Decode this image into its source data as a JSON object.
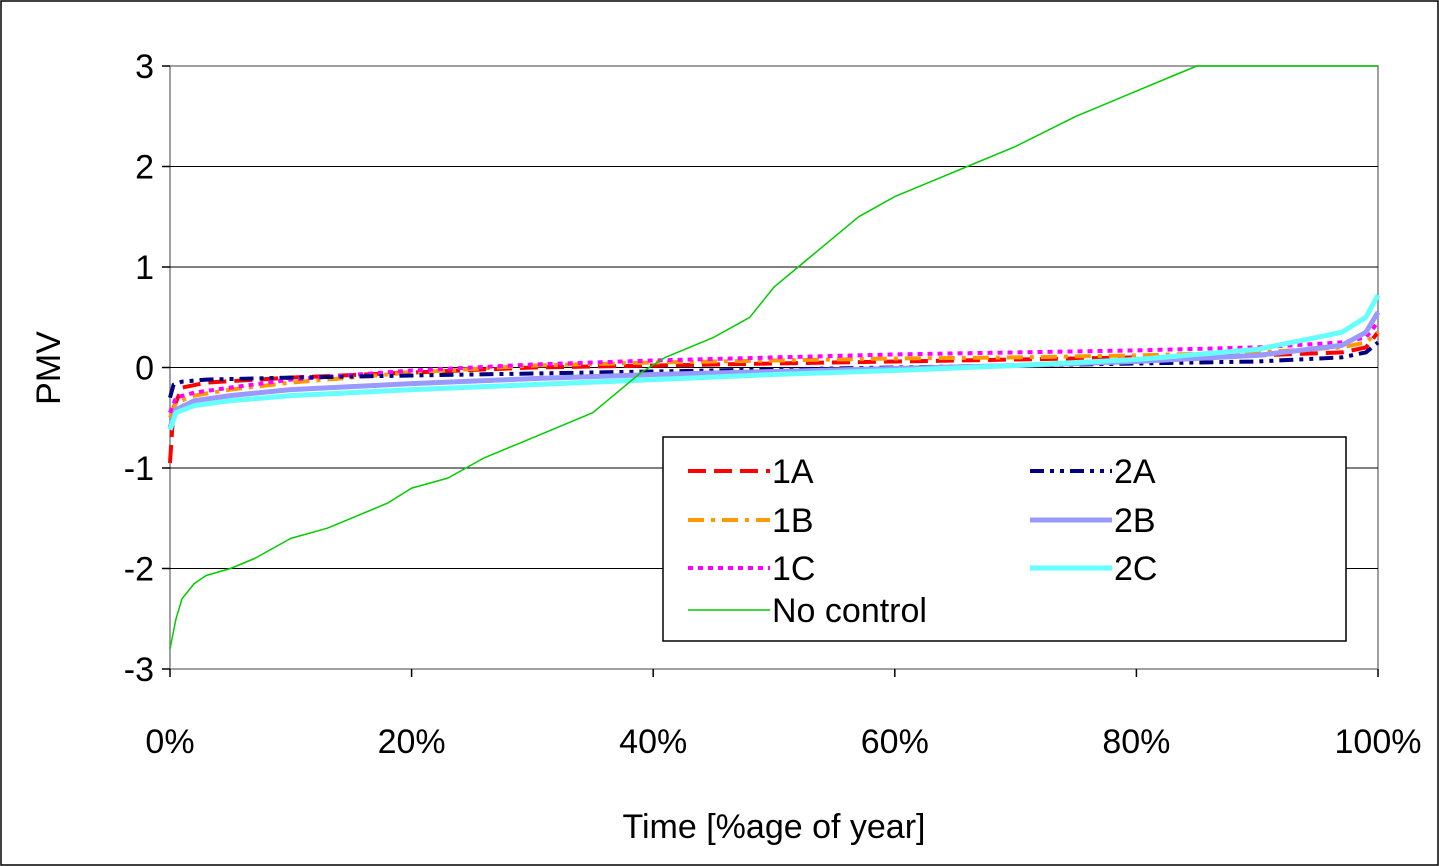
{
  "chart_data": {
    "type": "line",
    "title": "",
    "xlabel": "Time [%age of year]",
    "ylabel": "PMV",
    "xlim": [
      0,
      100
    ],
    "ylim": [
      -3,
      3
    ],
    "x_ticks": [
      0,
      20,
      40,
      60,
      80,
      100
    ],
    "x_tick_labels": [
      "0%",
      "20%",
      "40%",
      "60%",
      "80%",
      "100%"
    ],
    "y_ticks": [
      -3,
      -2,
      -1,
      0,
      1,
      2,
      3
    ],
    "y_tick_labels": [
      "-3",
      "-2",
      "-1",
      "0",
      "1",
      "2",
      "3"
    ],
    "grid": "horizontal",
    "legend_position": "bottom-right inside plot",
    "series": [
      {
        "name": "1A",
        "color": "#ff0000",
        "dash": "dash",
        "x": [
          0,
          0.3,
          1,
          3,
          10,
          20,
          30,
          40,
          50,
          60,
          70,
          80,
          90,
          97,
          99,
          100
        ],
        "y": [
          -0.95,
          -0.4,
          -0.2,
          -0.15,
          -0.1,
          -0.05,
          0.0,
          0.02,
          0.04,
          0.06,
          0.08,
          0.1,
          0.12,
          0.15,
          0.2,
          0.35
        ]
      },
      {
        "name": "1B",
        "color": "#ff9900",
        "dash": "dashdot",
        "x": [
          0,
          0.5,
          2,
          5,
          10,
          20,
          30,
          40,
          50,
          60,
          70,
          80,
          90,
          97,
          99,
          100
        ],
        "y": [
          -0.5,
          -0.35,
          -0.28,
          -0.22,
          -0.15,
          -0.05,
          0.02,
          0.05,
          0.07,
          0.09,
          0.1,
          0.12,
          0.15,
          0.2,
          0.25,
          0.35
        ]
      },
      {
        "name": "1C",
        "color": "#ff00ff",
        "dash": "dot",
        "x": [
          0,
          0.5,
          2,
          5,
          10,
          20,
          30,
          40,
          50,
          60,
          70,
          80,
          90,
          97,
          99,
          100
        ],
        "y": [
          -0.45,
          -0.3,
          -0.25,
          -0.2,
          -0.12,
          -0.03,
          0.03,
          0.07,
          0.1,
          0.13,
          0.15,
          0.17,
          0.2,
          0.25,
          0.3,
          0.45
        ]
      },
      {
        "name": "2A",
        "color": "#000080",
        "dash": "dashdotdot",
        "x": [
          0,
          0.3,
          1,
          3,
          10,
          20,
          30,
          40,
          50,
          60,
          70,
          80,
          90,
          97,
          99,
          100
        ],
        "y": [
          -0.3,
          -0.17,
          -0.14,
          -0.12,
          -0.1,
          -0.08,
          -0.06,
          -0.04,
          -0.02,
          0.0,
          0.02,
          0.04,
          0.06,
          0.1,
          0.15,
          0.25
        ]
      },
      {
        "name": "2B",
        "color": "#9999ff",
        "dash": "solid",
        "x": [
          0,
          0.5,
          2,
          5,
          10,
          20,
          30,
          40,
          50,
          60,
          70,
          80,
          90,
          97,
          99,
          100
        ],
        "y": [
          -0.6,
          -0.42,
          -0.33,
          -0.28,
          -0.22,
          -0.16,
          -0.11,
          -0.07,
          -0.04,
          -0.01,
          0.02,
          0.06,
          0.12,
          0.22,
          0.35,
          0.55
        ]
      },
      {
        "name": "2C",
        "color": "#66ffff",
        "dash": "solid",
        "x": [
          0,
          0.5,
          2,
          5,
          10,
          20,
          30,
          40,
          50,
          60,
          70,
          80,
          90,
          97,
          99,
          100
        ],
        "y": [
          -0.62,
          -0.45,
          -0.38,
          -0.33,
          -0.28,
          -0.22,
          -0.17,
          -0.12,
          -0.07,
          -0.03,
          0.02,
          0.08,
          0.18,
          0.35,
          0.5,
          0.72
        ]
      },
      {
        "name": "No control",
        "color": "#00cc00",
        "dash": "solid",
        "x": [
          0,
          0.5,
          1,
          2,
          3,
          5,
          7,
          10,
          13,
          15,
          18,
          20,
          23,
          26,
          29,
          32,
          35,
          37,
          39,
          41,
          43,
          45,
          48,
          50,
          52,
          53,
          55,
          57,
          60,
          63,
          66,
          70,
          75,
          80,
          83,
          85,
          90,
          95,
          100
        ],
        "y": [
          -2.8,
          -2.5,
          -2.3,
          -2.15,
          -2.07,
          -2.0,
          -1.9,
          -1.7,
          -1.6,
          -1.5,
          -1.35,
          -1.2,
          -1.1,
          -0.9,
          -0.75,
          -0.6,
          -0.45,
          -0.25,
          -0.05,
          0.1,
          0.2,
          0.3,
          0.5,
          0.8,
          1.0,
          1.1,
          1.3,
          1.5,
          1.7,
          1.85,
          2.0,
          2.2,
          2.5,
          2.75,
          2.9,
          3.0,
          3.0,
          3.0,
          3.0
        ]
      }
    ]
  }
}
